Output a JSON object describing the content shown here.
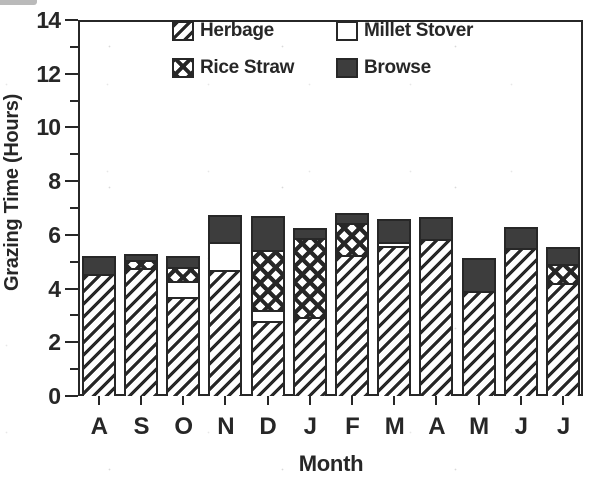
{
  "chart_data": {
    "type": "bar",
    "stacked": true,
    "title": "",
    "xlabel": "Month",
    "ylabel": "Grazing Time (Hours)",
    "ylim": [
      0,
      14
    ],
    "y_axis": {
      "major_ticks": [
        0,
        2,
        4,
        6,
        8,
        10,
        12,
        14
      ],
      "minor_ticks": [
        1,
        3,
        5,
        7,
        9,
        11,
        13
      ]
    },
    "categories": [
      "A",
      "S",
      "O",
      "N",
      "D",
      "J",
      "F",
      "M",
      "A",
      "M",
      "J",
      "J"
    ],
    "grid": false,
    "legend_position": "top-inside-two-rows",
    "series": [
      {
        "name": "Herbage",
        "pattern": "diagonal-hatch",
        "values": [
          4.55,
          4.75,
          3.7,
          4.7,
          2.8,
          2.95,
          5.25,
          5.6,
          5.85,
          3.9,
          5.5,
          4.2
        ]
      },
      {
        "name": "Millet Stover",
        "pattern": "white",
        "values": [
          0,
          0,
          0.6,
          1.05,
          0.4,
          0,
          0,
          0.15,
          0,
          0,
          0,
          0
        ]
      },
      {
        "name": "Rice Straw",
        "pattern": "diamond-crosshatch",
        "values": [
          0,
          0.3,
          0.5,
          0,
          2.25,
          2.95,
          1.2,
          0,
          0,
          0,
          0,
          0.7
        ]
      },
      {
        "name": "Browse",
        "pattern": "solid-dark",
        "values": [
          0.65,
          0.25,
          0.4,
          1.0,
          1.25,
          0.35,
          0.35,
          0.85,
          0.8,
          1.25,
          0.8,
          0.65
        ]
      }
    ],
    "colors": {
      "ink": "#272727",
      "browse_fill": "#3d3d3d",
      "background": "#ffffff"
    }
  }
}
